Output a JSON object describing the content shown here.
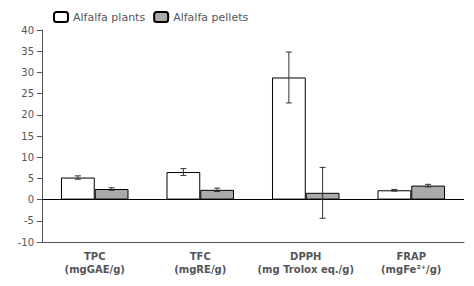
{
  "chart_data": {
    "type": "bar",
    "categories": [
      "TPC\n(mgGAE/g)",
      "TFC\n(mgRE/g)",
      "DPPH\n(mg Trolox eq./g)",
      "FRAP\n(mgFe²⁺/g)"
    ],
    "series": [
      {
        "name": "Alfalfa plants",
        "color": "#ffffff",
        "values": [
          5.2,
          6.5,
          28.8,
          2.2
        ],
        "errors": [
          0.4,
          0.8,
          6.0,
          0.2
        ]
      },
      {
        "name": "Alfalfa pellets",
        "color": "#aaaaaa",
        "values": [
          2.5,
          2.3,
          1.6,
          3.3
        ],
        "errors": [
          0.3,
          0.4,
          6.0,
          0.3
        ]
      }
    ],
    "ylim": [
      -10,
      40
    ],
    "yticks": [
      -10,
      -5,
      0,
      5,
      10,
      15,
      20,
      25,
      30,
      35,
      40
    ],
    "grid": false,
    "legend": "upper left"
  }
}
